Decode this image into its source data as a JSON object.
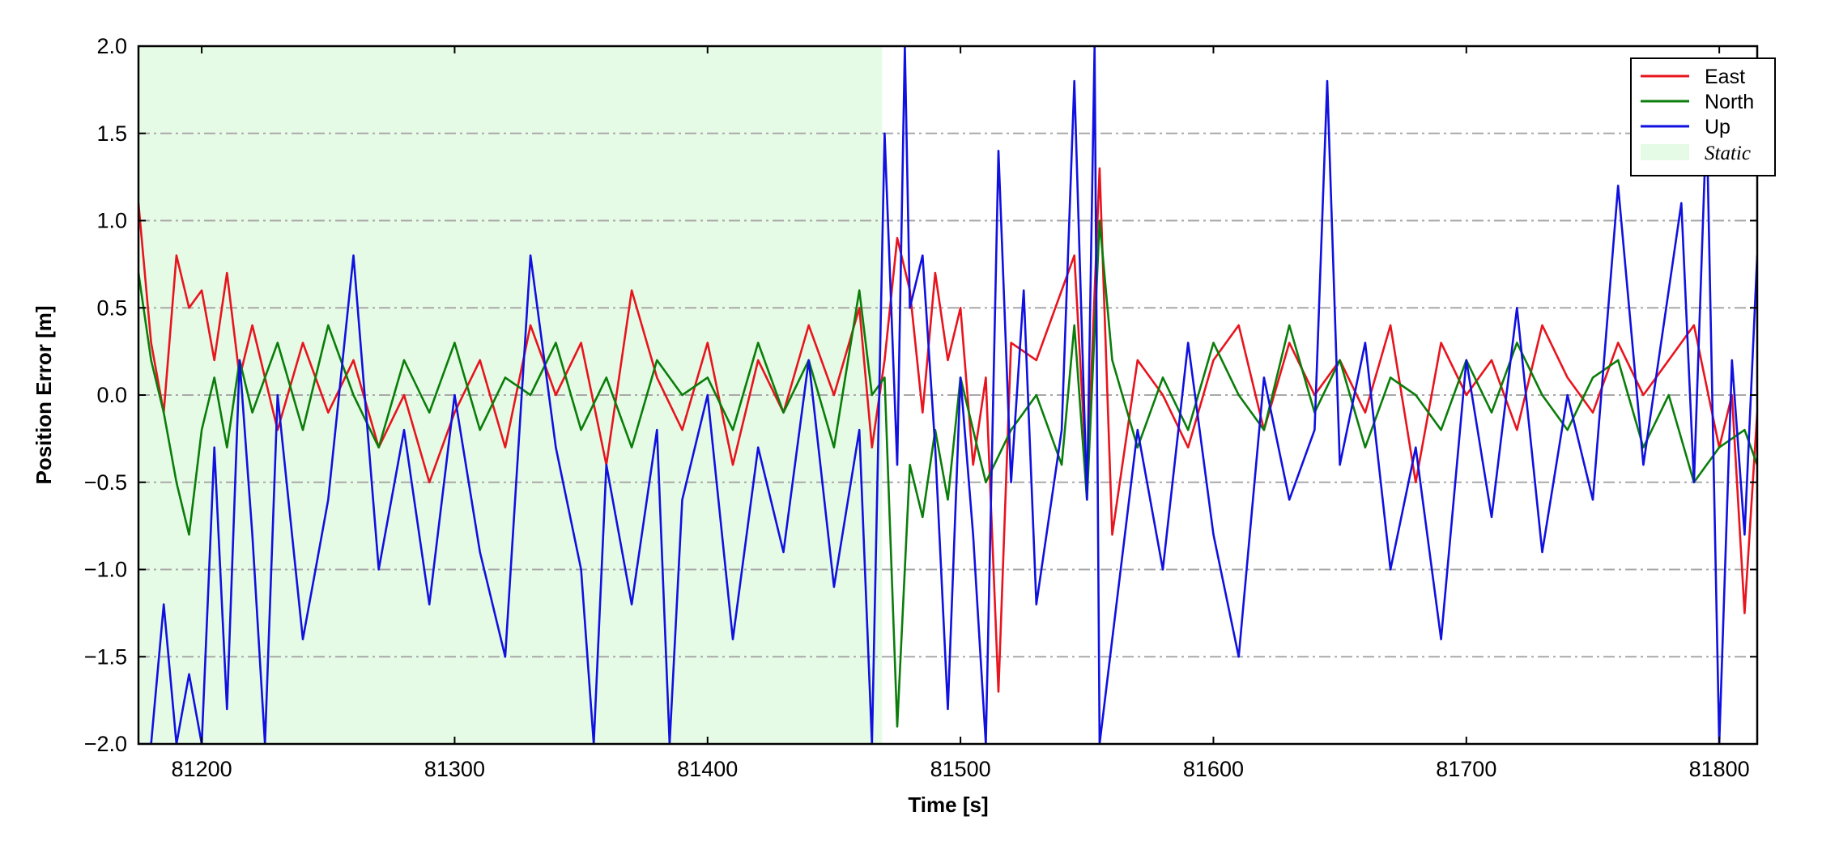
{
  "chart_data": {
    "type": "line",
    "title": "",
    "xlabel": "Time [s]",
    "ylabel": "Position Error [m]",
    "xlim": [
      81175,
      81815
    ],
    "ylim": [
      -2.0,
      2.0
    ],
    "x_ticks": [
      81200,
      81300,
      81400,
      81500,
      81600,
      81700,
      81800
    ],
    "x_tick_labels": [
      "81200",
      "81300",
      "81400",
      "81500",
      "81600",
      "81700",
      "81800"
    ],
    "y_ticks": [
      -2.0,
      -1.5,
      -1.0,
      -0.5,
      0.0,
      0.5,
      1.0,
      1.5,
      2.0
    ],
    "y_tick_labels": [
      "−2.0",
      "−1.5",
      "−1.0",
      "−0.5",
      "0.0",
      "0.5",
      "1.0",
      "1.5",
      "2.0"
    ],
    "grid": "horizontal dash-dot",
    "legend_position": "top-right",
    "static_region": {
      "label": "Static",
      "x_start": 81175,
      "x_end": 81469,
      "color": "#e6fbe6"
    },
    "series": [
      {
        "name": "East",
        "color": "#e8141e",
        "x": [
          81175,
          81180,
          81185,
          81190,
          81195,
          81200,
          81205,
          81210,
          81215,
          81220,
          81230,
          81240,
          81250,
          81260,
          81270,
          81280,
          81290,
          81300,
          81310,
          81320,
          81330,
          81340,
          81350,
          81360,
          81370,
          81380,
          81390,
          81400,
          81410,
          81420,
          81430,
          81440,
          81450,
          81460,
          81465,
          81470,
          81475,
          81480,
          81485,
          81490,
          81495,
          81500,
          81505,
          81510,
          81515,
          81520,
          81530,
          81540,
          81545,
          81550,
          81555,
          81560,
          81570,
          81580,
          81590,
          81600,
          81610,
          81620,
          81630,
          81640,
          81650,
          81660,
          81670,
          81680,
          81690,
          81700,
          81710,
          81720,
          81730,
          81740,
          81750,
          81760,
          81770,
          81780,
          81790,
          81800,
          81805,
          81810,
          81815
        ],
        "y": [
          1.1,
          0.3,
          -0.1,
          0.8,
          0.5,
          0.6,
          0.2,
          0.7,
          0.1,
          0.4,
          -0.2,
          0.3,
          -0.1,
          0.2,
          -0.3,
          0.0,
          -0.5,
          -0.1,
          0.2,
          -0.3,
          0.4,
          0.0,
          0.3,
          -0.4,
          0.6,
          0.1,
          -0.2,
          0.3,
          -0.4,
          0.2,
          -0.1,
          0.4,
          0.0,
          0.5,
          -0.3,
          0.2,
          0.9,
          0.6,
          -0.1,
          0.7,
          0.2,
          0.5,
          -0.4,
          0.1,
          -1.7,
          0.3,
          0.2,
          0.6,
          0.8,
          -0.5,
          1.3,
          -0.8,
          0.2,
          0.0,
          -0.3,
          0.2,
          0.4,
          -0.2,
          0.3,
          0.0,
          0.2,
          -0.1,
          0.4,
          -0.5,
          0.3,
          0.0,
          0.2,
          -0.2,
          0.4,
          0.1,
          -0.1,
          0.3,
          0.0,
          0.2,
          0.4,
          -0.3,
          0.0,
          -1.25,
          -0.1
        ]
      },
      {
        "name": "North",
        "color": "#0a7d0a",
        "x": [
          81175,
          81180,
          81185,
          81190,
          81195,
          81200,
          81205,
          81210,
          81215,
          81220,
          81230,
          81240,
          81250,
          81260,
          81270,
          81280,
          81290,
          81300,
          81310,
          81320,
          81330,
          81340,
          81350,
          81360,
          81370,
          81380,
          81390,
          81400,
          81410,
          81420,
          81430,
          81440,
          81450,
          81460,
          81465,
          81470,
          81475,
          81480,
          81485,
          81490,
          81495,
          81500,
          81510,
          81520,
          81530,
          81540,
          81545,
          81550,
          81555,
          81560,
          81570,
          81580,
          81590,
          81600,
          81610,
          81620,
          81630,
          81640,
          81650,
          81660,
          81670,
          81680,
          81690,
          81700,
          81710,
          81720,
          81730,
          81740,
          81750,
          81760,
          81770,
          81780,
          81790,
          81800,
          81810,
          81815
        ],
        "y": [
          0.7,
          0.2,
          -0.1,
          -0.5,
          -0.8,
          -0.2,
          0.1,
          -0.3,
          0.2,
          -0.1,
          0.3,
          -0.2,
          0.4,
          0.0,
          -0.3,
          0.2,
          -0.1,
          0.3,
          -0.2,
          0.1,
          0.0,
          0.3,
          -0.2,
          0.1,
          -0.3,
          0.2,
          0.0,
          0.1,
          -0.2,
          0.3,
          -0.1,
          0.2,
          -0.3,
          0.6,
          0.0,
          0.1,
          -1.9,
          -0.4,
          -0.7,
          -0.2,
          -0.6,
          0.1,
          -0.5,
          -0.2,
          0.0,
          -0.4,
          0.4,
          -0.6,
          1.0,
          0.2,
          -0.3,
          0.1,
          -0.2,
          0.3,
          0.0,
          -0.2,
          0.4,
          -0.1,
          0.2,
          -0.3,
          0.1,
          0.0,
          -0.2,
          0.2,
          -0.1,
          0.3,
          0.0,
          -0.2,
          0.1,
          0.2,
          -0.3,
          0.0,
          -0.5,
          -0.3,
          -0.2,
          -0.4
        ]
      },
      {
        "name": "Up",
        "color": "#1010e0",
        "x": [
          81175,
          81180,
          81185,
          81190,
          81195,
          81200,
          81205,
          81210,
          81215,
          81220,
          81225,
          81230,
          81240,
          81250,
          81260,
          81270,
          81280,
          81290,
          81300,
          81310,
          81320,
          81330,
          81340,
          81350,
          81355,
          81360,
          81370,
          81380,
          81385,
          81390,
          81400,
          81410,
          81420,
          81430,
          81440,
          81450,
          81460,
          81465,
          81470,
          81475,
          81478,
          81480,
          81485,
          81490,
          81495,
          81500,
          81505,
          81510,
          81515,
          81520,
          81525,
          81530,
          81540,
          81545,
          81550,
          81553,
          81555,
          81560,
          81570,
          81580,
          81590,
          81600,
          81610,
          81620,
          81630,
          81640,
          81645,
          81650,
          81660,
          81670,
          81680,
          81690,
          81700,
          81710,
          81720,
          81730,
          81740,
          81750,
          81760,
          81770,
          81780,
          81785,
          81790,
          81795,
          81800,
          81805,
          81810,
          81815
        ],
        "y": [
          -2.0,
          -2.0,
          -1.2,
          -2.0,
          -1.6,
          -2.0,
          -0.3,
          -1.8,
          0.2,
          -0.8,
          -2.0,
          0.0,
          -1.4,
          -0.6,
          0.8,
          -1.0,
          -0.2,
          -1.2,
          0.0,
          -0.9,
          -1.5,
          0.8,
          -0.3,
          -1.0,
          -2.0,
          -0.4,
          -1.2,
          -0.2,
          -2.0,
          -0.6,
          0.0,
          -1.4,
          -0.3,
          -0.9,
          0.2,
          -1.1,
          -0.2,
          -2.0,
          1.5,
          -0.4,
          2.0,
          0.5,
          0.8,
          -0.3,
          -1.8,
          0.1,
          -0.8,
          -2.0,
          1.4,
          -0.5,
          0.6,
          -1.2,
          -0.2,
          1.8,
          -0.6,
          2.0,
          -2.0,
          -1.4,
          -0.2,
          -1.0,
          0.3,
          -0.8,
          -1.5,
          0.1,
          -0.6,
          -0.2,
          1.8,
          -0.4,
          0.3,
          -1.0,
          -0.3,
          -1.4,
          0.2,
          -0.7,
          0.5,
          -0.9,
          0.0,
          -0.6,
          1.2,
          -0.4,
          0.6,
          1.1,
          -0.5,
          1.6,
          -2.0,
          0.2,
          -0.8,
          0.8
        ]
      }
    ]
  }
}
